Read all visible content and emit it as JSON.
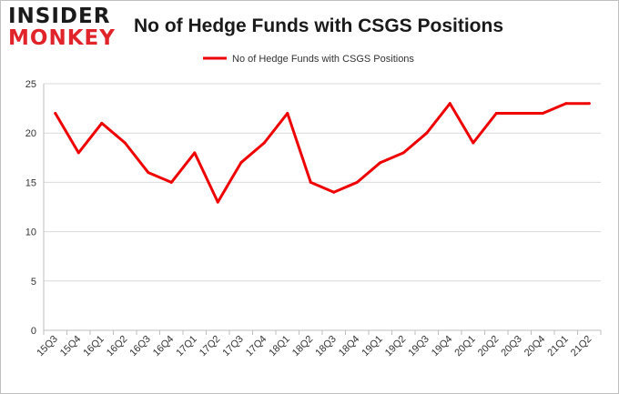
{
  "brand": {
    "logo_top": "INSIDER",
    "logo_bottom": "MONKEY",
    "accent_color": "#e0242a"
  },
  "chart_data": {
    "type": "line",
    "title": "No of Hedge Funds with CSGS Positions",
    "xlabel": "",
    "ylabel": "",
    "categories": [
      "15Q3",
      "15Q4",
      "16Q1",
      "16Q2",
      "16Q3",
      "16Q4",
      "17Q1",
      "17Q2",
      "17Q3",
      "17Q4",
      "18Q1",
      "18Q2",
      "18Q3",
      "18Q4",
      "19Q1",
      "19Q2",
      "19Q3",
      "19Q4",
      "20Q1",
      "20Q2",
      "20Q3",
      "20Q4",
      "21Q1",
      "21Q2"
    ],
    "series": [
      {
        "name": "No of Hedge Funds with CSGS Positions",
        "color": "#ee0000",
        "values": [
          22,
          18,
          21,
          19,
          16,
          15,
          18,
          13,
          17,
          19,
          22,
          15,
          14,
          15,
          17,
          18,
          20,
          23,
          19,
          22,
          22,
          22,
          23,
          23
        ]
      }
    ],
    "ylim": [
      0,
      25
    ],
    "yticks": [
      0,
      5,
      10,
      15,
      20,
      25
    ],
    "grid": true,
    "legend_position": "top-center"
  }
}
